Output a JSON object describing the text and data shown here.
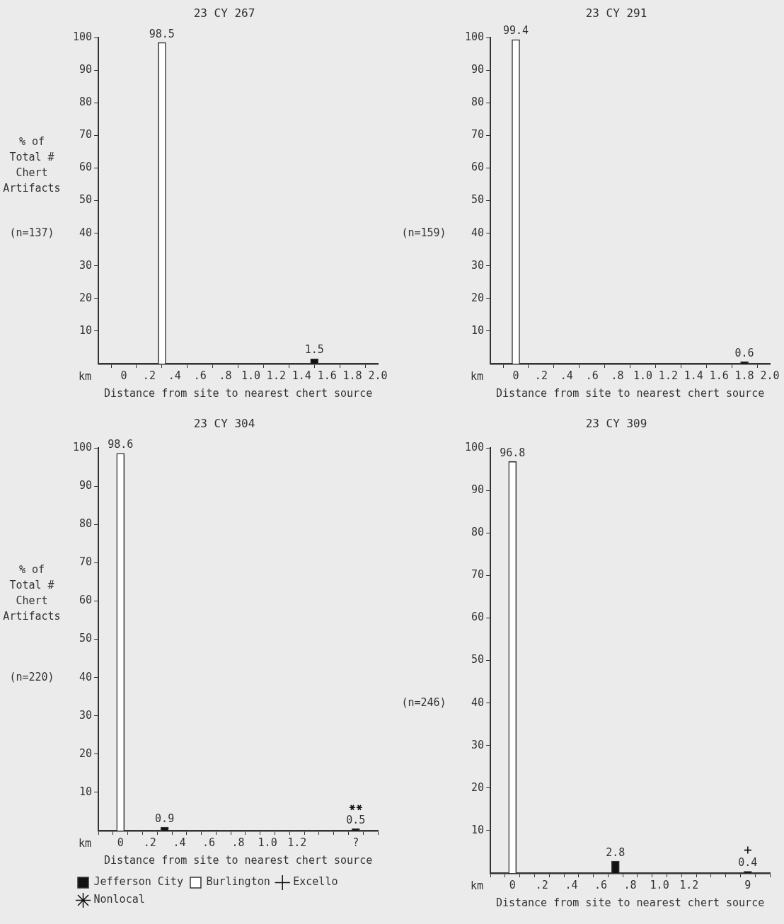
{
  "chart_data": [
    {
      "type": "bar",
      "title": "23 CY 267",
      "xlabel": "Distance from site to nearest chert source",
      "ylabel": "% of Total # Chert Artifacts",
      "annotations": [
        "km",
        "(n=137)"
      ],
      "xlim": [
        -0.2,
        2.0
      ],
      "xticks": [
        0,
        {
          "value": 0.2,
          "label": ".2"
        },
        {
          "value": 0.4,
          "label": ".4"
        },
        {
          "value": 0.6,
          "label": ".6"
        },
        {
          "value": 0.8,
          "label": ".8"
        },
        {
          "value": 1.0,
          "label": "1.0"
        },
        1.2,
        1.4,
        1.6,
        1.8,
        {
          "value": 2.0,
          "label": "2.0"
        }
      ],
      "ylim": [
        0,
        100
      ],
      "yticks": [
        10,
        20,
        30,
        40,
        50,
        60,
        70,
        80,
        90,
        100
      ],
      "data_labels": true,
      "series": [
        {
          "color": "#ffffff",
          "x": [
            0.3
          ],
          "values": [
            98.5
          ]
        },
        {
          "color": "#111111",
          "x": [
            1.5
          ],
          "values": [
            1.5
          ]
        }
      ]
    },
    {
      "type": "bar",
      "title": "23 CY 291",
      "xlabel": "Distance from site to nearest chert source",
      "annotations": [
        "km",
        "(n=159)"
      ],
      "xlim": [
        -0.2,
        2.0
      ],
      "xticks": [
        0,
        {
          "value": 0.2,
          "label": ".2"
        },
        {
          "value": 0.4,
          "label": ".4"
        },
        {
          "value": 0.6,
          "label": ".6"
        },
        {
          "value": 0.8,
          "label": ".8"
        },
        {
          "value": 1.0,
          "label": "1.0"
        },
        1.2,
        1.4,
        1.6,
        1.8,
        {
          "value": 2.0,
          "label": "2.0"
        }
      ],
      "ylim": [
        0,
        100
      ],
      "yticks": [
        10,
        20,
        30,
        40,
        50,
        60,
        70,
        80,
        90,
        100
      ],
      "data_labels": true,
      "series": [
        {
          "color": "#ffffff",
          "x": [
            0
          ],
          "values": [
            99.4
          ]
        },
        {
          "color": "#111111",
          "x": [
            1.8
          ],
          "values": [
            0.6
          ]
        }
      ]
    },
    {
      "type": "bar",
      "title": "23 CY 304",
      "xlabel": "Distance from site to nearest chert source",
      "ylabel": "% of Total # Chert Artifacts",
      "annotations": [
        "km",
        "(n=220)"
      ],
      "categories": [
        null,
        "0",
        null,
        ".2",
        null,
        ".4",
        null,
        ".6",
        null,
        ".8",
        null,
        "1.0",
        null,
        "1.2",
        null,
        null,
        null,
        "?",
        null
      ],
      "ylim": [
        0,
        100
      ],
      "yticks": [
        10,
        20,
        30,
        40,
        50,
        60,
        70,
        80,
        90,
        100
      ],
      "data_labels": true,
      "legend": "bottom",
      "series": [
        {
          "name": "Jefferson City",
          "color": "#111111",
          "values": [
            null,
            null,
            null,
            null,
            0.9,
            null,
            null,
            null,
            null,
            null,
            null,
            null,
            null,
            null,
            null,
            null,
            null,
            null,
            null
          ]
        },
        {
          "name": "Burlington",
          "color": "#ffffff",
          "values": [
            null,
            98.6,
            null,
            null,
            null,
            null,
            null,
            null,
            null,
            null,
            null,
            null,
            null,
            null,
            null,
            null,
            null,
            null,
            null
          ]
        },
        {
          "name": "Excello",
          "color": "#111111",
          "marker": "cross",
          "values": [
            null,
            null,
            null,
            null,
            null,
            null,
            null,
            null,
            null,
            null,
            null,
            null,
            null,
            null,
            null,
            null,
            null,
            null,
            null
          ]
        },
        {
          "name": "Nonlocal",
          "color": "#111111",
          "marker": "star",
          "values": [
            null,
            null,
            null,
            null,
            null,
            null,
            null,
            null,
            null,
            null,
            null,
            null,
            null,
            null,
            null,
            null,
            null,
            0.5,
            null
          ]
        }
      ]
    },
    {
      "type": "bar",
      "title": "23 CY 309",
      "xlabel": "Distance from site to nearest chert source",
      "annotations": [
        "km",
        "(n=246)"
      ],
      "categories": [
        null,
        "0",
        null,
        ".2",
        null,
        ".4",
        null,
        ".6",
        null,
        ".8",
        null,
        "1.0",
        null,
        "1.2",
        null,
        null,
        null,
        "9",
        null
      ],
      "ylim": [
        0,
        100
      ],
      "yticks": [
        10,
        20,
        30,
        40,
        50,
        60,
        70,
        80,
        90,
        100
      ],
      "data_labels": true,
      "series": [
        {
          "color": "#ffffff",
          "values": [
            null,
            96.8,
            null,
            null,
            null,
            null,
            null,
            null,
            null,
            null,
            null,
            null,
            null,
            null,
            null,
            null,
            null,
            null,
            null
          ]
        },
        {
          "color": "#111111",
          "values": [
            null,
            null,
            null,
            null,
            null,
            null,
            null,
            null,
            2.8,
            null,
            null,
            null,
            null,
            null,
            null,
            null,
            null,
            null,
            null
          ]
        },
        {
          "color": "#111111",
          "marker": "cross",
          "values": [
            null,
            null,
            null,
            null,
            null,
            null,
            null,
            null,
            null,
            null,
            null,
            null,
            null,
            null,
            null,
            null,
            null,
            0.4,
            null
          ]
        }
      ]
    }
  ]
}
